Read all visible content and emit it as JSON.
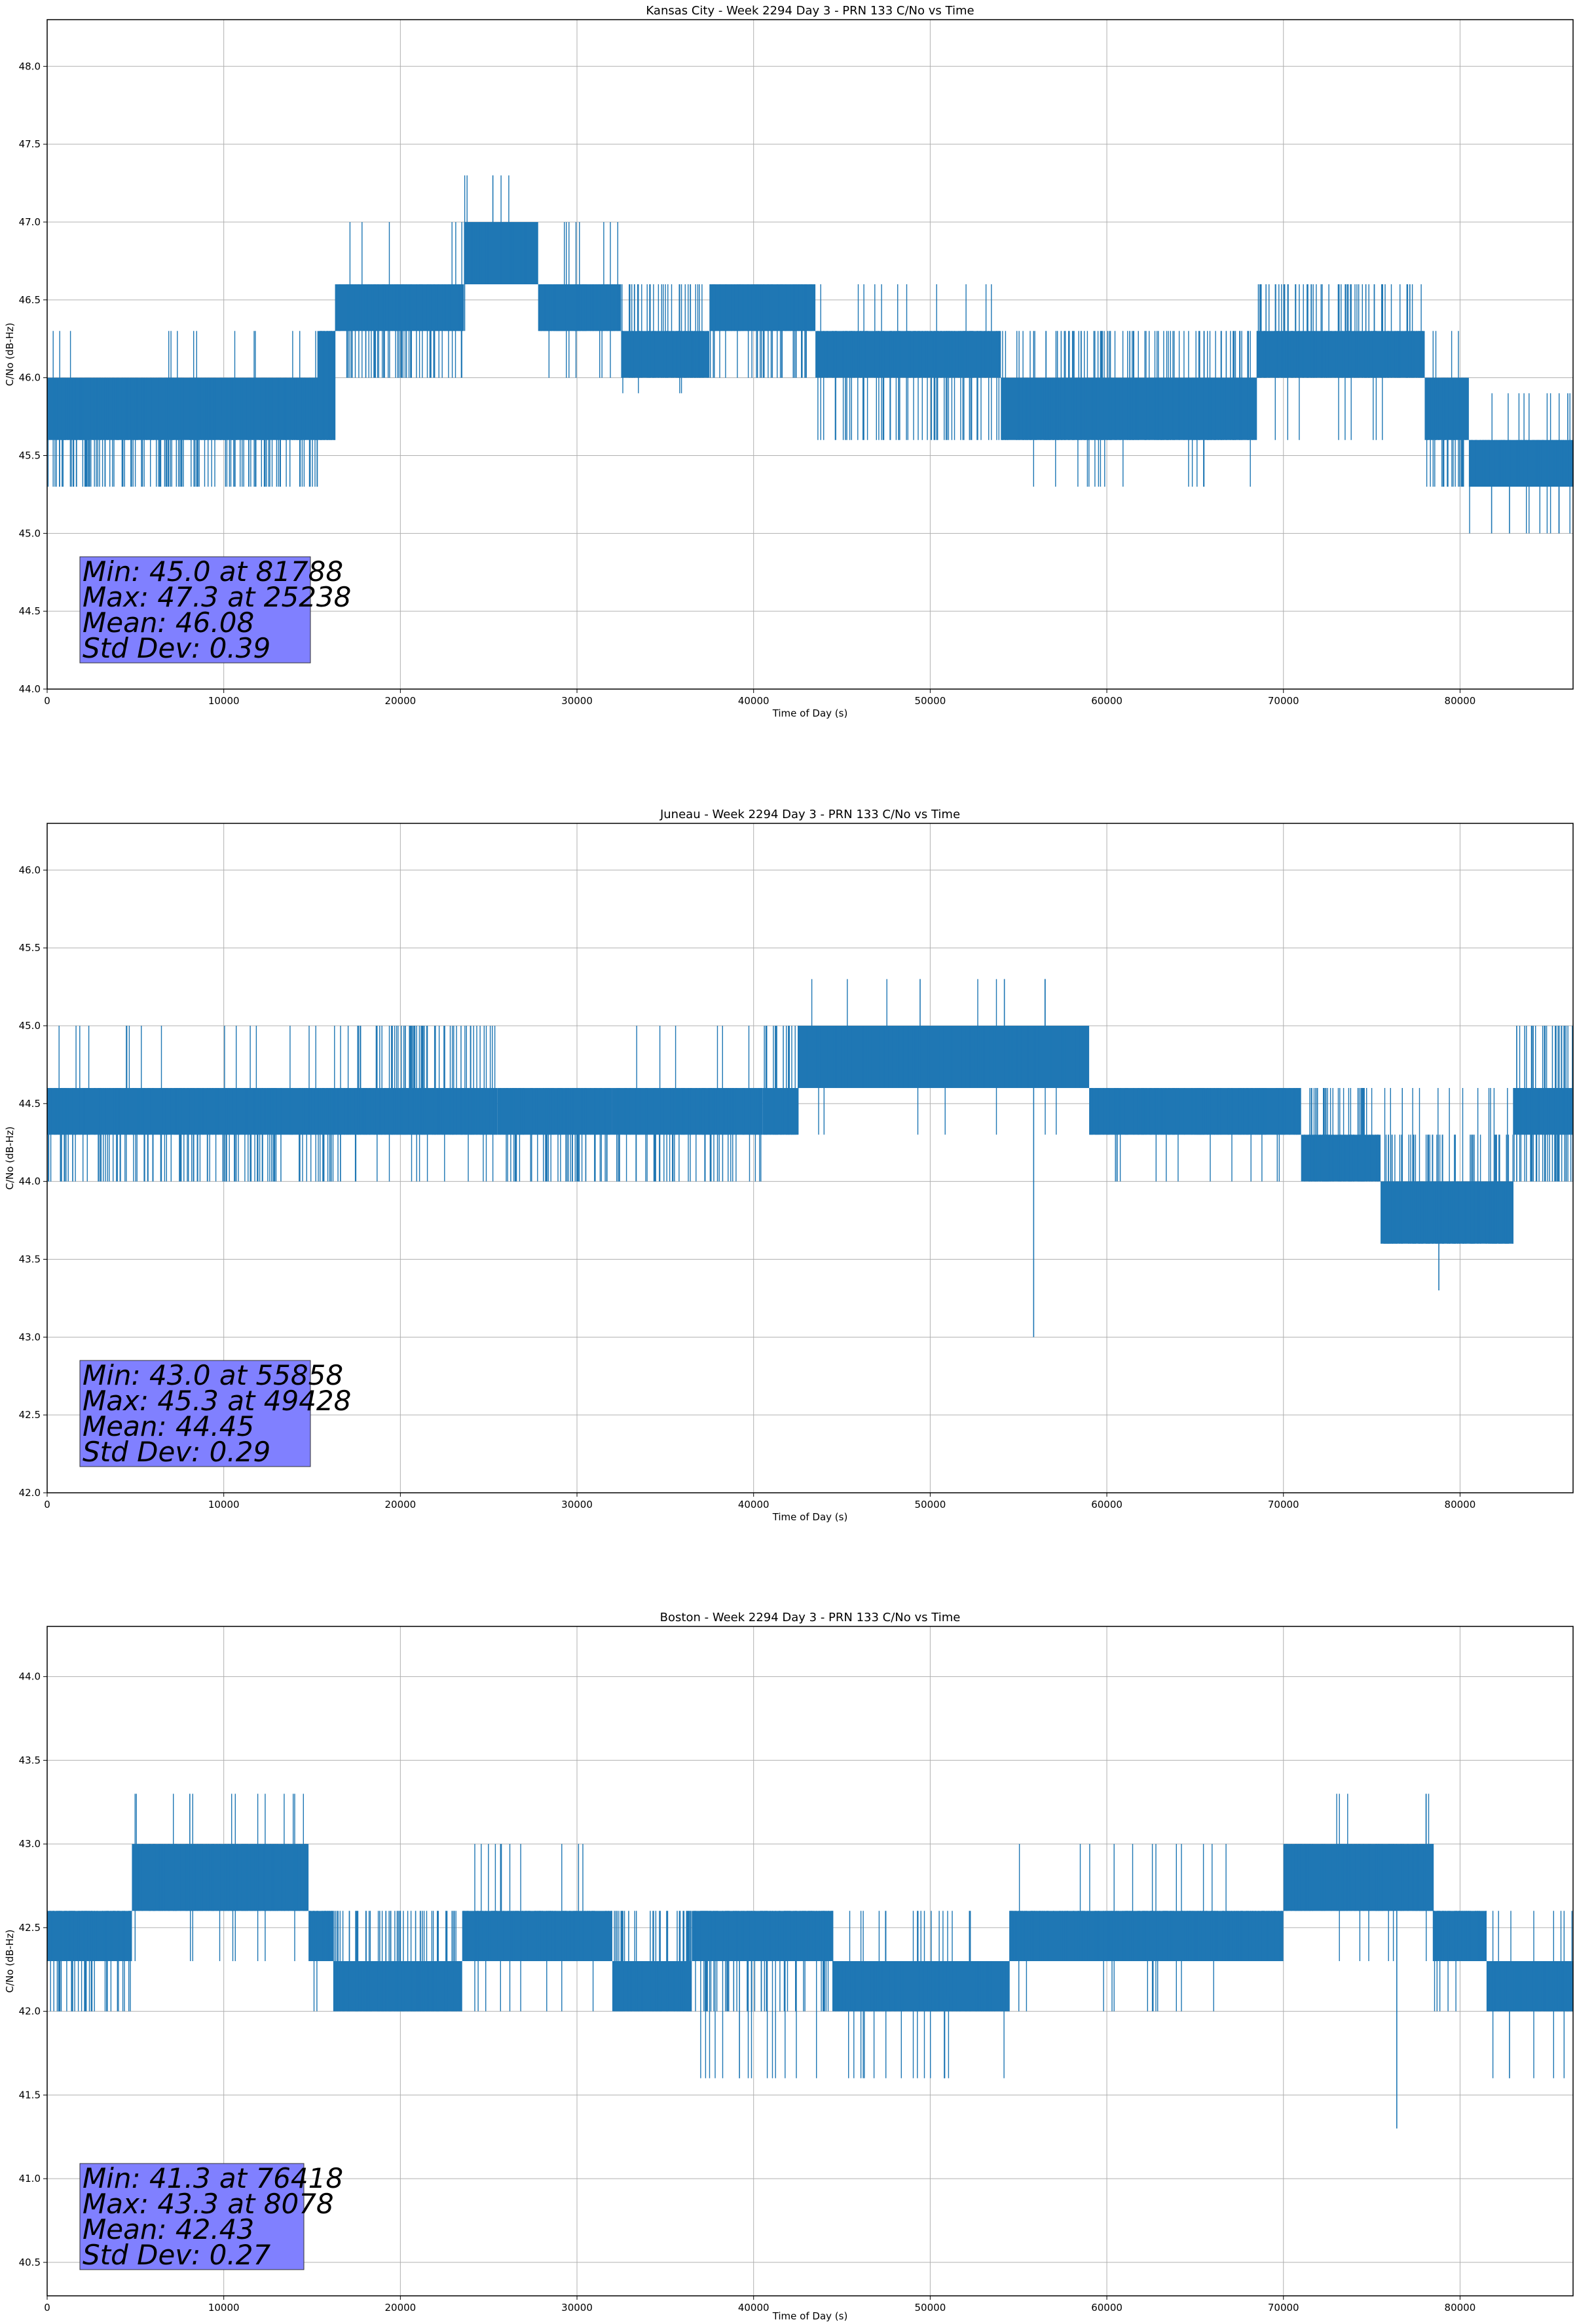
{
  "colors": {
    "series": "#1f77b4",
    "grid": "#b0b0b0",
    "stats_box": "#8080ff"
  },
  "chart_data": [
    {
      "type": "line",
      "title": "Kansas City - Week 2294 Day 3 - PRN 133 C/No vs Time",
      "xlabel": "Time of Day (s)",
      "ylabel": "C/No (dB-Hz)",
      "xlim": [
        0,
        86400
      ],
      "ylim": [
        44.0,
        48.3
      ],
      "xticks": [
        0,
        10000,
        20000,
        30000,
        40000,
        50000,
        60000,
        70000,
        80000
      ],
      "yticks": [
        44.0,
        44.5,
        45.0,
        45.5,
        46.0,
        46.5,
        47.0,
        47.5,
        48.0
      ],
      "grid": true,
      "series": [
        {
          "name": "C/No",
          "segments": [
            {
              "x0": 0,
              "x1": 15300,
              "base": [
                45.6,
                46.0
              ],
              "band": [
                45.3,
                46.0
              ],
              "spikes": [
                45.3,
                46.3
              ],
              "density": 0.55
            },
            {
              "x0": 15300,
              "x1": 16300,
              "base": [
                45.6,
                46.3
              ],
              "band": [
                45.6,
                46.3
              ],
              "spikes": [
                45.6,
                46.3
              ],
              "density": 0.5
            },
            {
              "x0": 16300,
              "x1": 23600,
              "base": [
                46.3,
                46.6
              ],
              "band": [
                46.0,
                46.6
              ],
              "spikes": [
                46.0,
                47.0
              ],
              "density": 0.45
            },
            {
              "x0": 23600,
              "x1": 27800,
              "base": [
                46.6,
                47.0
              ],
              "band": [
                46.6,
                47.0
              ],
              "spikes": [
                46.3,
                47.3
              ],
              "density": 0.35
            },
            {
              "x0": 27800,
              "x1": 32500,
              "base": [
                46.3,
                46.6
              ],
              "band": [
                46.3,
                46.6
              ],
              "spikes": [
                46.0,
                47.0
              ],
              "density": 0.55
            },
            {
              "x0": 32500,
              "x1": 37500,
              "base": [
                46.0,
                46.3
              ],
              "band": [
                46.0,
                46.6
              ],
              "spikes": [
                45.9,
                46.6
              ],
              "density": 0.45
            },
            {
              "x0": 37500,
              "x1": 43500,
              "base": [
                46.3,
                46.6
              ],
              "band": [
                46.0,
                46.6
              ],
              "spikes": [
                46.0,
                46.6
              ],
              "density": 0.4
            },
            {
              "x0": 43500,
              "x1": 54000,
              "base": [
                46.0,
                46.3
              ],
              "band": [
                45.6,
                46.3
              ],
              "spikes": [
                45.6,
                46.6
              ],
              "density": 0.4
            },
            {
              "x0": 54000,
              "x1": 68500,
              "base": [
                45.6,
                46.0
              ],
              "band": [
                45.6,
                46.3
              ],
              "spikes": [
                45.3,
                46.3
              ],
              "density": 0.45
            },
            {
              "x0": 68500,
              "x1": 78000,
              "base": [
                46.0,
                46.3
              ],
              "band": [
                46.0,
                46.6
              ],
              "spikes": [
                45.6,
                46.6
              ],
              "density": 0.5
            },
            {
              "x0": 78000,
              "x1": 80500,
              "base": [
                45.6,
                46.0
              ],
              "band": [
                45.3,
                46.0
              ],
              "spikes": [
                45.3,
                46.3
              ],
              "density": 0.55
            },
            {
              "x0": 80500,
              "x1": 86400,
              "base": [
                45.3,
                45.6
              ],
              "band": [
                45.3,
                45.6
              ],
              "spikes": [
                45.0,
                45.9
              ],
              "density": 0.5
            }
          ],
          "outliers": [
            [
              81788,
              45.0
            ],
            [
              82800,
              45.0
            ],
            [
              85600,
              45.0
            ],
            [
              25238,
              47.3
            ],
            [
              45200,
              45.6
            ],
            [
              86100,
              45.9
            ]
          ]
        }
      ],
      "stats": [
        "Min: 45.0 at 81788",
        "Max: 47.3 at 25238",
        "Mean: 46.08",
        "Std Dev: 0.39"
      ]
    },
    {
      "type": "line",
      "title": "Juneau - Week 2294 Day 3 - PRN 133 C/No vs Time",
      "xlabel": "Time of Day (s)",
      "ylabel": "C/No (dB-Hz)",
      "xlim": [
        0,
        86400
      ],
      "ylim": [
        42.0,
        46.3
      ],
      "xticks": [
        0,
        10000,
        20000,
        30000,
        40000,
        50000,
        60000,
        70000,
        80000
      ],
      "yticks": [
        42.0,
        42.5,
        43.0,
        43.5,
        44.0,
        44.5,
        45.0,
        45.5,
        46.0
      ],
      "grid": true,
      "series": [
        {
          "name": "C/No",
          "segments": [
            {
              "x0": 0,
              "x1": 17500,
              "base": [
                44.3,
                44.6
              ],
              "band": [
                44.0,
                44.6
              ],
              "spikes": [
                44.0,
                45.0
              ],
              "density": 0.5
            },
            {
              "x0": 17500,
              "x1": 25500,
              "base": [
                44.3,
                44.6
              ],
              "band": [
                44.3,
                45.0
              ],
              "spikes": [
                44.0,
                45.0
              ],
              "density": 0.55
            },
            {
              "x0": 25500,
              "x1": 32000,
              "base": [
                44.3,
                44.6
              ],
              "band": [
                44.0,
                44.6
              ],
              "spikes": [
                44.0,
                44.6
              ],
              "density": 0.5
            },
            {
              "x0": 32000,
              "x1": 40500,
              "base": [
                44.3,
                44.6
              ],
              "band": [
                44.0,
                44.6
              ],
              "spikes": [
                44.0,
                45.0
              ],
              "density": 0.4
            },
            {
              "x0": 40500,
              "x1": 42500,
              "base": [
                44.3,
                44.6
              ],
              "band": [
                44.3,
                45.0
              ],
              "spikes": [
                44.3,
                45.0
              ],
              "density": 0.6
            },
            {
              "x0": 42500,
              "x1": 59000,
              "base": [
                44.6,
                45.0
              ],
              "band": [
                44.6,
                45.0
              ],
              "spikes": [
                44.3,
                45.3
              ],
              "density": 0.35
            },
            {
              "x0": 59000,
              "x1": 71000,
              "base": [
                44.3,
                44.6
              ],
              "band": [
                44.3,
                44.6
              ],
              "spikes": [
                44.0,
                44.6
              ],
              "density": 0.4
            },
            {
              "x0": 71000,
              "x1": 75500,
              "base": [
                44.0,
                44.3
              ],
              "band": [
                44.0,
                44.6
              ],
              "spikes": [
                44.0,
                44.6
              ],
              "density": 0.6
            },
            {
              "x0": 75500,
              "x1": 83000,
              "base": [
                43.6,
                44.0
              ],
              "band": [
                43.6,
                44.3
              ],
              "spikes": [
                43.6,
                44.6
              ],
              "density": 0.55
            },
            {
              "x0": 83000,
              "x1": 86400,
              "base": [
                44.3,
                44.6
              ],
              "band": [
                44.0,
                45.0
              ],
              "spikes": [
                44.0,
                45.0
              ],
              "density": 0.6
            }
          ],
          "outliers": [
            [
              55858,
              43.0
            ],
            [
              78800,
              43.3
            ],
            [
              49428,
              45.3
            ],
            [
              54200,
              45.3
            ],
            [
              56500,
              45.3
            ]
          ]
        }
      ],
      "stats": [
        "Min: 43.0 at 55858",
        "Max: 45.3 at 49428",
        "Mean: 44.45",
        "Std Dev: 0.29"
      ]
    },
    {
      "type": "line",
      "title": "Boston - Week 2294 Day 3 - PRN 133 C/No vs Time",
      "xlabel": "Time of Day (s)",
      "ylabel": "C/No (dB-Hz)",
      "xlim": [
        0,
        86400
      ],
      "ylim": [
        40.3,
        44.3
      ],
      "xticks": [
        0,
        10000,
        20000,
        30000,
        40000,
        50000,
        60000,
        70000,
        80000
      ],
      "yticks": [
        40.5,
        41.0,
        41.5,
        42.0,
        42.5,
        43.0,
        43.5,
        44.0
      ],
      "grid": true,
      "series": [
        {
          "name": "C/No",
          "segments": [
            {
              "x0": 0,
              "x1": 4800,
              "base": [
                42.3,
                42.6
              ],
              "band": [
                42.0,
                42.6
              ],
              "spikes": [
                42.0,
                42.6
              ],
              "density": 0.55
            },
            {
              "x0": 4800,
              "x1": 14800,
              "base": [
                42.6,
                43.0
              ],
              "band": [
                42.6,
                43.0
              ],
              "spikes": [
                42.3,
                43.3
              ],
              "density": 0.45
            },
            {
              "x0": 14800,
              "x1": 16200,
              "base": [
                42.3,
                42.6
              ],
              "band": [
                42.3,
                42.6
              ],
              "spikes": [
                42.0,
                42.6
              ],
              "density": 0.5
            },
            {
              "x0": 16200,
              "x1": 23500,
              "base": [
                42.0,
                42.3
              ],
              "band": [
                42.0,
                42.6
              ],
              "spikes": [
                42.0,
                42.6
              ],
              "density": 0.5
            },
            {
              "x0": 23500,
              "x1": 32000,
              "base": [
                42.3,
                42.6
              ],
              "band": [
                42.3,
                42.6
              ],
              "spikes": [
                42.0,
                43.0
              ],
              "density": 0.4
            },
            {
              "x0": 32000,
              "x1": 36500,
              "base": [
                42.0,
                42.3
              ],
              "band": [
                42.0,
                42.6
              ],
              "spikes": [
                42.0,
                42.6
              ],
              "density": 0.5
            },
            {
              "x0": 36500,
              "x1": 44500,
              "base": [
                42.3,
                42.6
              ],
              "band": [
                42.0,
                42.6
              ],
              "spikes": [
                41.6,
                42.6
              ],
              "density": 0.5
            },
            {
              "x0": 44500,
              "x1": 54500,
              "base": [
                42.0,
                42.3
              ],
              "band": [
                42.0,
                42.3
              ],
              "spikes": [
                41.6,
                42.6
              ],
              "density": 0.45
            },
            {
              "x0": 54500,
              "x1": 70000,
              "base": [
                42.3,
                42.6
              ],
              "band": [
                42.3,
                42.6
              ],
              "spikes": [
                42.0,
                43.0
              ],
              "density": 0.45
            },
            {
              "x0": 70000,
              "x1": 78500,
              "base": [
                42.6,
                43.0
              ],
              "band": [
                42.6,
                43.0
              ],
              "spikes": [
                42.3,
                43.3
              ],
              "density": 0.4
            },
            {
              "x0": 78500,
              "x1": 81500,
              "base": [
                42.3,
                42.6
              ],
              "band": [
                42.3,
                42.6
              ],
              "spikes": [
                42.0,
                42.6
              ],
              "density": 0.5
            },
            {
              "x0": 81500,
              "x1": 86400,
              "base": [
                42.0,
                42.3
              ],
              "band": [
                42.0,
                42.3
              ],
              "spikes": [
                41.6,
                42.6
              ],
              "density": 0.55
            }
          ],
          "outliers": [
            [
              76418,
              41.3
            ],
            [
              39200,
              41.6
            ],
            [
              50800,
              41.6
            ],
            [
              82800,
              41.6
            ],
            [
              8078,
              43.3
            ]
          ]
        }
      ],
      "stats": [
        "Min: 41.3 at 76418",
        "Max: 43.3 at 8078",
        "Mean: 42.43",
        "Std Dev: 0.27"
      ]
    }
  ]
}
